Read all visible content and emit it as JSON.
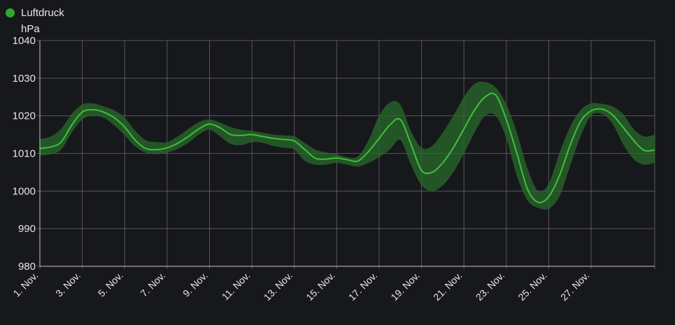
{
  "colors": {
    "background": "#17181c",
    "line": "#3fbf3f",
    "band": "#2a6a2a",
    "legend_dot": "#2ea82e",
    "grid": "#8a8a8a",
    "text": "#e6e6e6"
  },
  "legend": {
    "label": "Luftdruck",
    "unit": "hPa",
    "icon": "filled-circle"
  },
  "chart_data": {
    "type": "line",
    "title": "",
    "ylabel": "hPa",
    "ylim": [
      980,
      1040
    ],
    "xlim": [
      1,
      30
    ],
    "y_ticks": [
      980,
      990,
      1000,
      1010,
      1020,
      1030,
      1040
    ],
    "x_tick_labels": [
      "1. Nov.",
      "3. Nov.",
      "5. Nov.",
      "7. Nov.",
      "9. Nov.",
      "11. Nov.",
      "13. Nov.",
      "15. Nov.",
      "17. Nov.",
      "19. Nov.",
      "21. Nov.",
      "23. Nov.",
      "25. Nov.",
      "27. Nov."
    ],
    "x_tick_days": [
      1,
      3,
      5,
      7,
      9,
      11,
      13,
      15,
      17,
      19,
      21,
      23,
      25,
      27
    ],
    "grid": true,
    "legend_position": "top-left",
    "series": [
      {
        "name": "Luftdruck",
        "x": [
          1,
          1.5,
          2,
          2.5,
          3,
          3.5,
          4,
          4.5,
          5,
          5.5,
          6,
          6.5,
          7,
          7.5,
          8,
          8.5,
          9,
          9.5,
          10,
          10.5,
          11,
          11.5,
          12,
          12.5,
          13,
          13.5,
          14,
          14.5,
          15,
          15.5,
          16,
          16.5,
          17,
          17.5,
          18,
          18.5,
          19,
          19.5,
          20,
          20.5,
          21,
          21.5,
          22,
          22.5,
          23,
          23.5,
          24,
          24.5,
          25,
          25.5,
          26,
          26.5,
          27,
          27.5,
          28,
          28.5,
          29,
          29.5,
          30
        ],
        "values": [
          1011.3,
          1011.7,
          1013.0,
          1017.5,
          1021.0,
          1021.6,
          1021.0,
          1019.5,
          1017.0,
          1013.5,
          1011.3,
          1011.0,
          1011.5,
          1012.7,
          1014.5,
          1016.5,
          1017.8,
          1016.8,
          1015.0,
          1014.8,
          1015.0,
          1014.5,
          1014.0,
          1013.7,
          1013.3,
          1011.0,
          1008.7,
          1008.5,
          1008.8,
          1008.3,
          1008.0,
          1010.5,
          1014.0,
          1017.5,
          1019.0,
          1012.5,
          1005.5,
          1005.0,
          1007.5,
          1011.5,
          1016.5,
          1021.5,
          1025.0,
          1025.5,
          1019.0,
          1010.0,
          1000.5,
          997.0,
          998.5,
          1004.0,
          1012.0,
          1018.5,
          1021.3,
          1021.8,
          1020.3,
          1017.0,
          1013.5,
          1010.8,
          1010.9
        ],
        "band_upper": [
          1013.8,
          1014.5,
          1016.5,
          1020.5,
          1023.0,
          1023.3,
          1022.5,
          1021.5,
          1019.5,
          1016.0,
          1013.5,
          1013.0,
          1013.0,
          1014.5,
          1016.5,
          1018.3,
          1019.0,
          1018.2,
          1017.0,
          1016.3,
          1016.0,
          1015.5,
          1015.0,
          1014.8,
          1014.5,
          1012.8,
          1011.0,
          1010.3,
          1009.8,
          1009.0,
          1009.2,
          1013.5,
          1020.0,
          1023.5,
          1023.0,
          1016.0,
          1011.5,
          1012.0,
          1015.5,
          1020.0,
          1025.0,
          1028.5,
          1029.0,
          1027.5,
          1023.0,
          1015.5,
          1006.0,
          1000.0,
          1002.0,
          1010.0,
          1017.0,
          1021.5,
          1023.3,
          1023.2,
          1022.5,
          1020.5,
          1016.5,
          1014.5,
          1015.0
        ],
        "band_lower": [
          1009.5,
          1009.8,
          1011.0,
          1015.5,
          1019.0,
          1020.0,
          1019.5,
          1017.5,
          1014.8,
          1011.8,
          1010.2,
          1009.8,
          1010.2,
          1011.2,
          1012.8,
          1015.0,
          1016.3,
          1014.5,
          1012.5,
          1012.2,
          1013.0,
          1012.8,
          1012.0,
          1011.5,
          1011.0,
          1008.0,
          1007.0,
          1007.0,
          1007.5,
          1007.0,
          1006.5,
          1007.5,
          1009.0,
          1011.0,
          1013.5,
          1007.0,
          1001.5,
          1000.0,
          1001.5,
          1005.0,
          1010.0,
          1015.5,
          1020.0,
          1020.0,
          1014.0,
          1004.0,
          997.5,
          995.5,
          995.3,
          998.5,
          1006.5,
          1014.5,
          1020.0,
          1020.5,
          1018.0,
          1012.5,
          1008.5,
          1007.0,
          1007.5
        ]
      }
    ]
  }
}
